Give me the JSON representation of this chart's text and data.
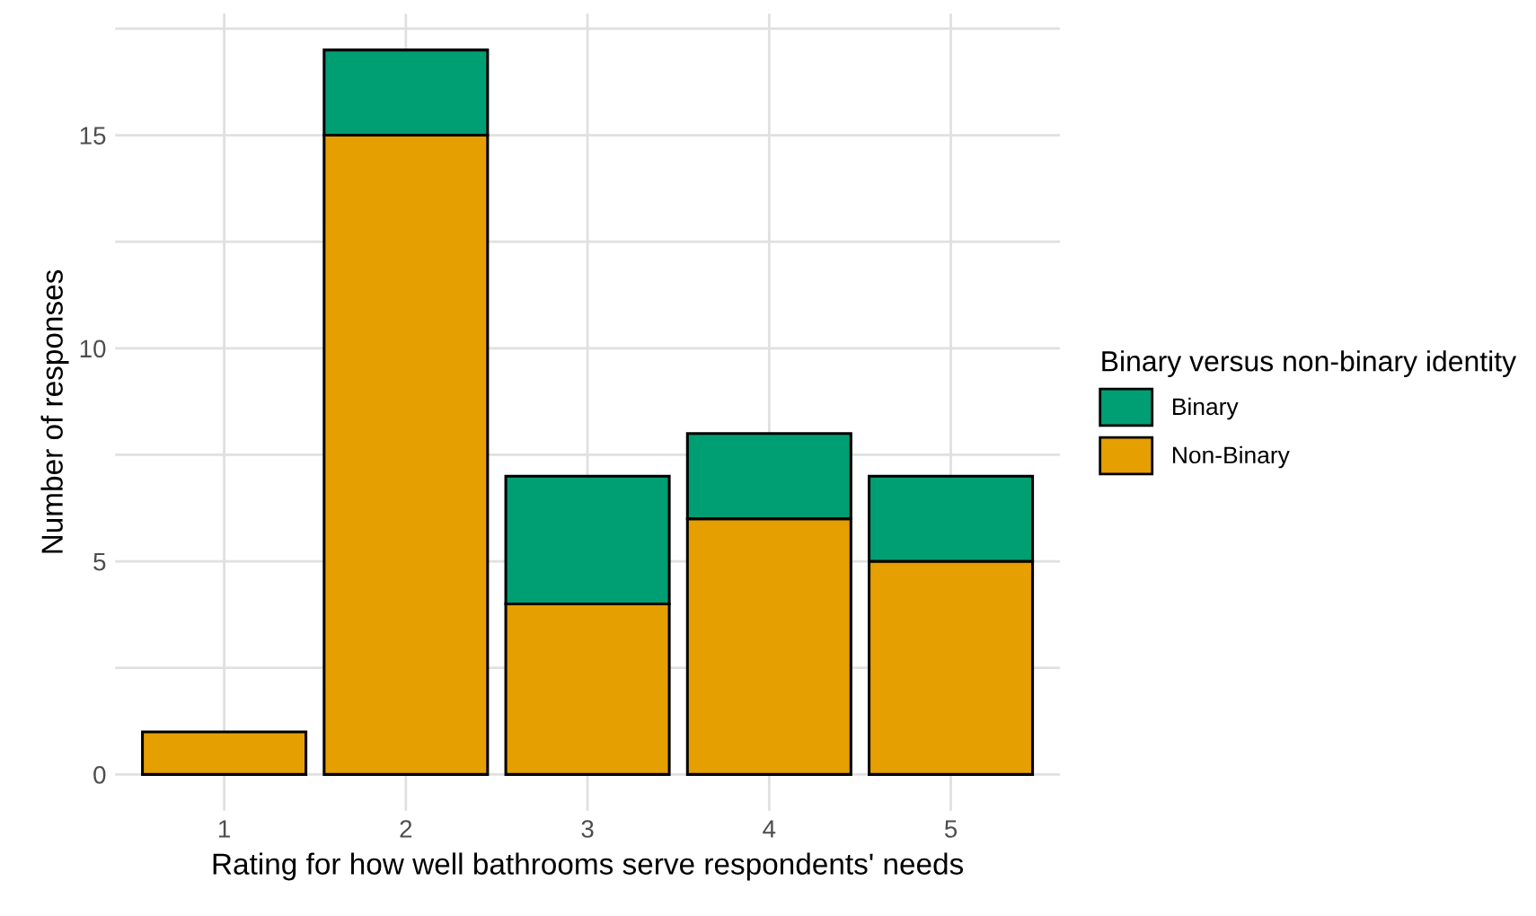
{
  "chart_data": {
    "type": "bar",
    "stacked": true,
    "xlabel": "Rating for how well bathrooms serve respondents' needs",
    "ylabel": "Number of responses",
    "legend_title": "Binary versus non-binary identity",
    "categories": [
      "1",
      "2",
      "3",
      "4",
      "5"
    ],
    "series": [
      {
        "name": "Non-Binary",
        "color": "#e69f00",
        "values": [
          1,
          15,
          4,
          6,
          5
        ]
      },
      {
        "name": "Binary",
        "color": "#009e73",
        "values": [
          null,
          2,
          3,
          2,
          2
        ]
      }
    ],
    "ylim": [
      -0.85,
      17.85
    ],
    "yticks": [
      0,
      {
        "value": 2.5,
        "label": null
      },
      5,
      {
        "value": 7.5,
        "label": null
      },
      10,
      {
        "value": 12.5,
        "label": null
      },
      15,
      {
        "value": 17.5,
        "label": null
      }
    ],
    "grid": true,
    "legend": "right"
  }
}
